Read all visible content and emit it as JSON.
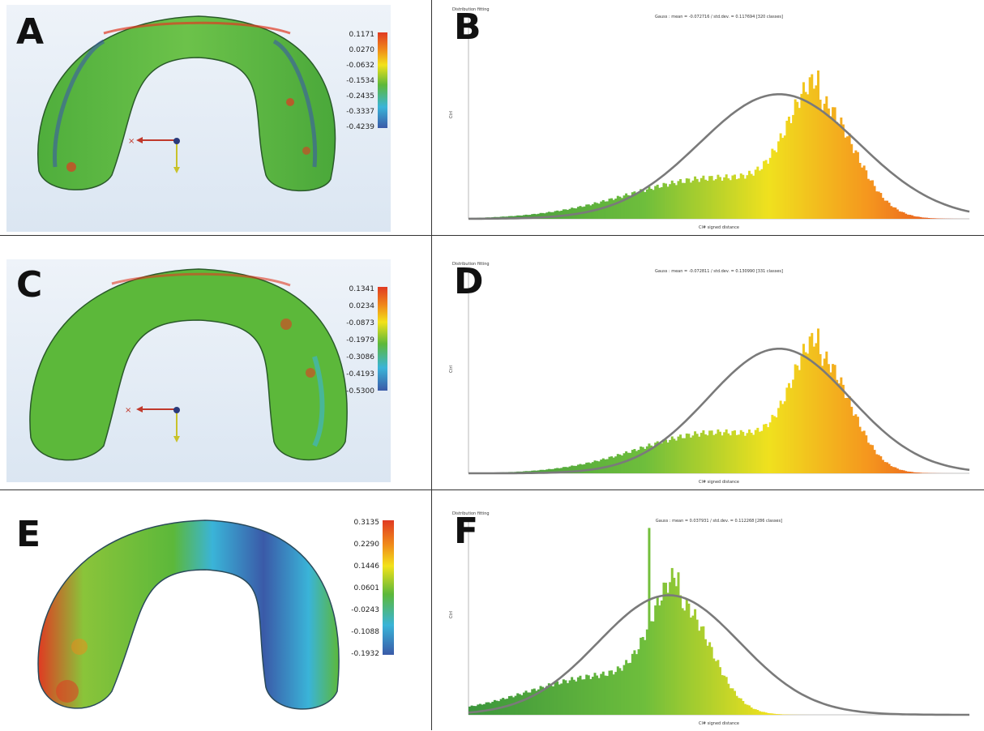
{
  "panels": [
    {
      "letter": "A",
      "scale_values": [
        "0.1171",
        "0.0270",
        "-0.0632",
        "-0.1534",
        "-0.2435",
        "-0.3337",
        "-0.4239"
      ]
    },
    {
      "letter": "C",
      "scale_values": [
        "0.1341",
        "0.0234",
        "-0.0873",
        "-0.1979",
        "-0.3086",
        "-0.4193",
        "-0.5300"
      ]
    },
    {
      "letter": "E",
      "scale_values": [
        "0.3135",
        "0.2290",
        "0.1446",
        "0.0601",
        "-0.0243",
        "-0.1088",
        "-0.1932"
      ]
    }
  ],
  "histograms": [
    {
      "letter": "B",
      "window_title": "Distribution fitting",
      "subtitle": "Gauss : mean = -0.072716 / std.dev. = 0.117694 [320 classes]",
      "ylabel": "Ctrl",
      "xlabel": "Cl# signed distance"
    },
    {
      "letter": "D",
      "window_title": "Distribution fitting",
      "subtitle": "Gauss : mean = -0.072811 / std.dev. = 0.130990 [331 classes]",
      "ylabel": "Ctrl",
      "xlabel": "Cl# signed distance"
    },
    {
      "letter": "F",
      "window_title": "Distribution fitting",
      "subtitle": "Gauss : mean = 0.037931 / std.dev. = 0.112268 [286 classes]",
      "ylabel": "Ctrl",
      "xlabel": "Cl# signed distance"
    }
  ],
  "colors": {
    "gauss_curve": "#7a7a7a",
    "red": "#e03a22",
    "yellow": "#f2e21a",
    "green": "#5cb83a",
    "blue": "#3a5aa8"
  }
}
